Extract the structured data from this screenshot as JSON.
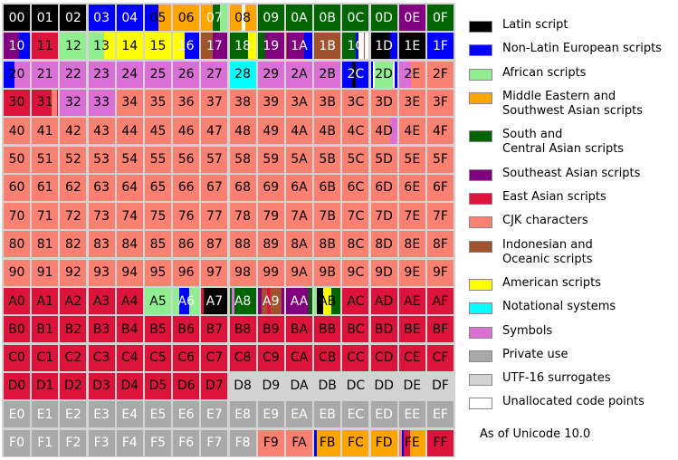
{
  "colors": {
    "L": "#000000",
    "N": "#0000ff",
    "Af": "#90ee90",
    "M": "#ffa500",
    "S": "#006400",
    "SE": "#800080",
    "E": "#dc143c",
    "C": "#fa8072",
    "I": "#a0522d",
    "A": "#ffff00",
    "T": "#00ffff",
    "Y": "#da70d6",
    "P": "#a9a9a9",
    "U": "#d3d3d3",
    "X": "#ffffff"
  },
  "legend": [
    {
      "key": "L",
      "label": "Latin script"
    },
    {
      "key": "N",
      "label": "Non-Latin European scripts"
    },
    {
      "key": "Af",
      "label": "African scripts"
    },
    {
      "key": "M",
      "label": "Middle Eastern and\nSouthwest Asian scripts"
    },
    {
      "key": "S",
      "label": "South and\nCentral Asian scripts"
    },
    {
      "key": "SE",
      "label": "Southeast Asian scripts"
    },
    {
      "key": "E",
      "label": "East Asian scripts"
    },
    {
      "key": "C",
      "label": "CJK characters"
    },
    {
      "key": "I",
      "label": "Indonesian and\nOceanic scripts"
    },
    {
      "key": "A",
      "label": "American scripts"
    },
    {
      "key": "T",
      "label": "Notational systems"
    },
    {
      "key": "Y",
      "label": "Symbols"
    },
    {
      "key": "P",
      "label": "Private use"
    },
    {
      "key": "U",
      "label": "UTF-16 surrogates"
    },
    {
      "key": "X",
      "label": "Unallocated code points"
    }
  ],
  "note": "As of Unicode 10.0",
  "cells": {
    "00": "L",
    "01": "L",
    "02": "L",
    "03": "N",
    "04": "N",
    "05": [
      [
        "N",
        0.5
      ],
      [
        "M",
        0.5
      ]
    ],
    "06": "M",
    "07": [
      [
        "M",
        0.45
      ],
      [
        "S",
        0.25
      ],
      [
        "Af",
        0.3
      ]
    ],
    "08": [
      [
        "M",
        0.45
      ],
      [
        "X",
        0.15
      ],
      [
        "M",
        0.4
      ]
    ],
    "09": "S",
    "0A": "S",
    "0B": "S",
    "0C": "S",
    "0D": "S",
    "0E": "SE",
    "0F": "S",
    "10": [
      [
        "SE",
        0.6
      ],
      [
        "N",
        0.4
      ]
    ],
    "11": "E",
    "12": "Af",
    "13": [
      [
        "Af",
        0.6
      ],
      [
        "A",
        0.4
      ]
    ],
    "14": "A",
    "15": "A",
    "16": [
      [
        "A",
        0.45
      ],
      [
        "N",
        0.55
      ]
    ],
    "17": [
      [
        "I",
        0.45
      ],
      [
        "SE",
        0.55
      ]
    ],
    "18": [
      [
        "S",
        0.7
      ],
      [
        "A",
        0.3
      ]
    ],
    "19": [
      [
        "S",
        0.3
      ],
      [
        "SE",
        0.7
      ]
    ],
    "1A": [
      [
        "I",
        0.05
      ],
      [
        "SE",
        0.65
      ],
      [
        "N",
        0.3
      ]
    ],
    "1B": "I",
    "1C": [
      [
        "S",
        0.5
      ],
      [
        "N",
        0.1
      ],
      [
        "X",
        0.2
      ],
      [
        "I",
        0.05
      ],
      [
        "X",
        0.15
      ]
    ],
    "1D": [
      [
        "L",
        0.75
      ],
      [
        "N",
        0.25
      ]
    ],
    "1E": "L",
    "1F": "N",
    "20": [
      [
        "N",
        0.4
      ],
      [
        "Y",
        0.6
      ]
    ],
    "21": "Y",
    "22": "Y",
    "23": "Y",
    "24": "Y",
    "25": "Y",
    "26": "Y",
    "27": "Y",
    "28": "T",
    "29": "Y",
    "2A": "Y",
    "2B": "Y",
    "2C": [
      [
        "N",
        0.35
      ],
      [
        "L",
        0.15
      ],
      [
        "N",
        0.5
      ]
    ],
    "2D": [
      [
        "N",
        0.1
      ],
      [
        "X",
        0.05
      ],
      [
        "Af",
        0.7
      ],
      [
        "X",
        0.05
      ],
      [
        "N",
        0.1
      ]
    ],
    "2E": [
      [
        "Y",
        0.45
      ],
      [
        "C",
        0.55
      ]
    ],
    "2F": "C",
    "30": "E",
    "31": [
      [
        "E",
        0.75
      ],
      [
        "C",
        0.2
      ],
      [
        "E",
        0.05
      ]
    ],
    "32": "Y",
    "33": "Y",
    "4D": [
      [
        "C",
        0.75
      ],
      [
        "Y",
        0.25
      ]
    ],
    "A0": "E",
    "A1": "E",
    "A2": "E",
    "A3": "E",
    "A4": "E",
    "A5": "Af",
    "A6": [
      [
        "Af",
        0.25
      ],
      [
        "N",
        0.35
      ],
      [
        "Af",
        0.4
      ]
    ],
    "A7": [
      [
        "E",
        0.08
      ],
      [
        "L",
        0.92
      ]
    ],
    "A8": [
      [
        "S",
        0.1
      ],
      [
        "Y",
        0.08
      ],
      [
        "S",
        0.82
      ]
    ],
    "A9": [
      [
        "SE",
        0.15
      ],
      [
        "I",
        0.2
      ],
      [
        "E",
        0.15
      ],
      [
        "I",
        0.4
      ],
      [
        "SE",
        0.1
      ]
    ],
    "AA": [
      [
        "SE",
        0.85
      ],
      [
        "S",
        0.15
      ]
    ],
    "AB": [
      [
        "Af",
        0.1
      ],
      [
        "L",
        0.25
      ],
      [
        "A",
        0.3
      ],
      [
        "S",
        0.35
      ]
    ],
    "AC": "E",
    "AD": "E",
    "AE": "E",
    "AF": "E",
    "D8": "U",
    "D9": "U",
    "DA": "U",
    "DB": "U",
    "DC": "U",
    "DD": "U",
    "DE": "U",
    "DF": "U",
    "F9": "C",
    "FA": "C",
    "FB": [
      [
        "N",
        0.08
      ],
      [
        "M",
        0.92
      ]
    ],
    "FC": "M",
    "FD": "M",
    "FE": [
      [
        "C",
        0.1
      ],
      [
        "N",
        0.08
      ],
      [
        "E",
        0.25
      ],
      [
        "M",
        0.57
      ]
    ],
    "FF": "E"
  }
}
